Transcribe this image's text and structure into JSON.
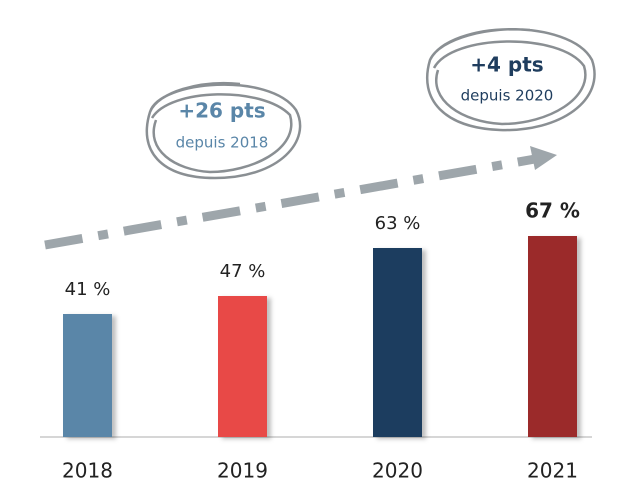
{
  "chart_data": {
    "type": "bar",
    "categories": [
      "2018",
      "2019",
      "2020",
      "2021"
    ],
    "values": [
      41,
      47,
      63,
      67
    ],
    "value_labels": [
      "41 %",
      "47 %",
      "63 %",
      "67 %"
    ],
    "colors": [
      "#5a86a8",
      "#e84a47",
      "#1f3d5e",
      "#9b2a2c"
    ],
    "annotations": [
      {
        "title": "+26 pts",
        "text": "depuis 2018"
      },
      {
        "title": "+4 pts",
        "text": "depuis 2020"
      }
    ]
  }
}
